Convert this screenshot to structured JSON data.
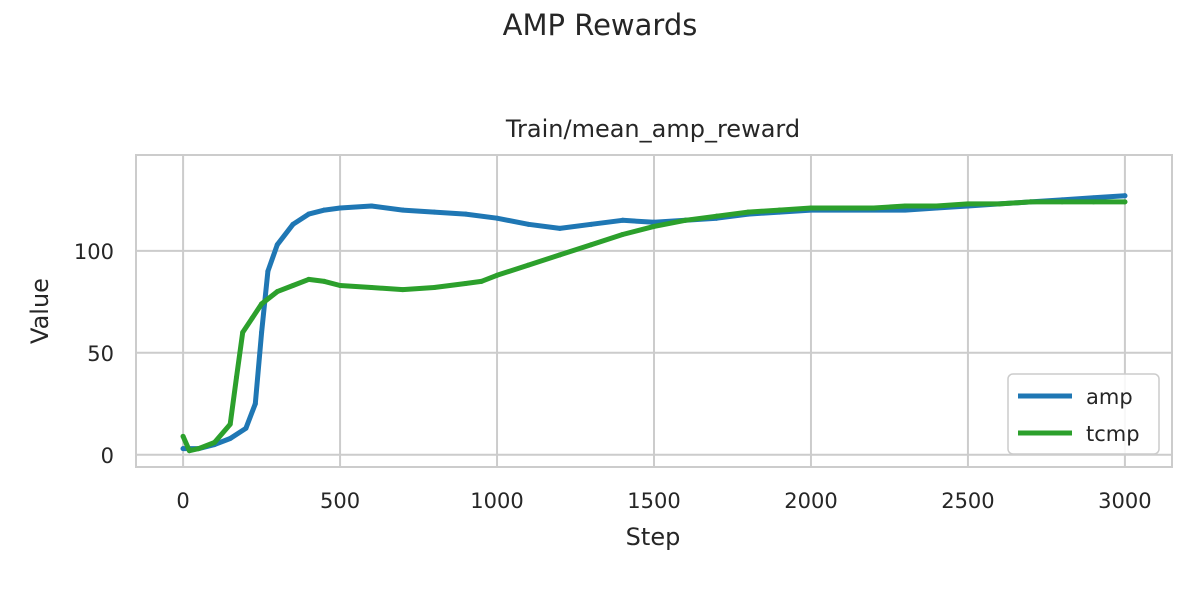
{
  "figure": {
    "suptitle": "AMP Rewards"
  },
  "chart_data": {
    "type": "line",
    "title": "Train/mean_amp_reward",
    "xlabel": "Step",
    "ylabel": "Value",
    "xlim": [
      -150,
      3150
    ],
    "ylim": [
      -6,
      147
    ],
    "xticks": [
      0,
      500,
      1000,
      1500,
      2000,
      2500,
      3000
    ],
    "xtick_labels": [
      "0",
      "500",
      "1000",
      "1500",
      "2000",
      "2500",
      "3000"
    ],
    "yticks": [
      0,
      50,
      100
    ],
    "ytick_labels": [
      "0",
      "50",
      "100"
    ],
    "grid": true,
    "legend_position": "lower-right",
    "series": [
      {
        "name": "amp",
        "color": "#1f77b4",
        "x": [
          0,
          50,
          100,
          150,
          200,
          230,
          250,
          270,
          300,
          350,
          400,
          450,
          500,
          600,
          700,
          800,
          900,
          1000,
          1100,
          1200,
          1300,
          1400,
          1500,
          1600,
          1700,
          1800,
          1900,
          2000,
          2100,
          2200,
          2300,
          2400,
          2500,
          2600,
          2700,
          2800,
          2900,
          3000
        ],
        "y": [
          3,
          3,
          5,
          8,
          13,
          25,
          60,
          90,
          103,
          113,
          118,
          120,
          121,
          122,
          120,
          119,
          118,
          116,
          113,
          111,
          113,
          115,
          114,
          115,
          116,
          118,
          119,
          120,
          120,
          120,
          120,
          121,
          122,
          123,
          124,
          125,
          126,
          127
        ]
      },
      {
        "name": "tcmp",
        "color": "#2ca02c",
        "x": [
          0,
          20,
          50,
          100,
          150,
          170,
          190,
          220,
          250,
          300,
          350,
          400,
          450,
          500,
          600,
          700,
          800,
          900,
          950,
          1000,
          1100,
          1200,
          1300,
          1400,
          1500,
          1600,
          1700,
          1800,
          1900,
          2000,
          2100,
          2200,
          2300,
          2400,
          2500,
          2600,
          2700,
          2800,
          2900,
          3000
        ],
        "y": [
          9,
          2,
          3,
          6,
          15,
          38,
          60,
          67,
          74,
          80,
          83,
          86,
          85,
          83,
          82,
          81,
          82,
          84,
          85,
          88,
          93,
          98,
          103,
          108,
          112,
          115,
          117,
          119,
          120,
          121,
          121,
          121,
          122,
          122,
          123,
          123,
          124,
          124,
          124,
          124
        ]
      }
    ]
  }
}
